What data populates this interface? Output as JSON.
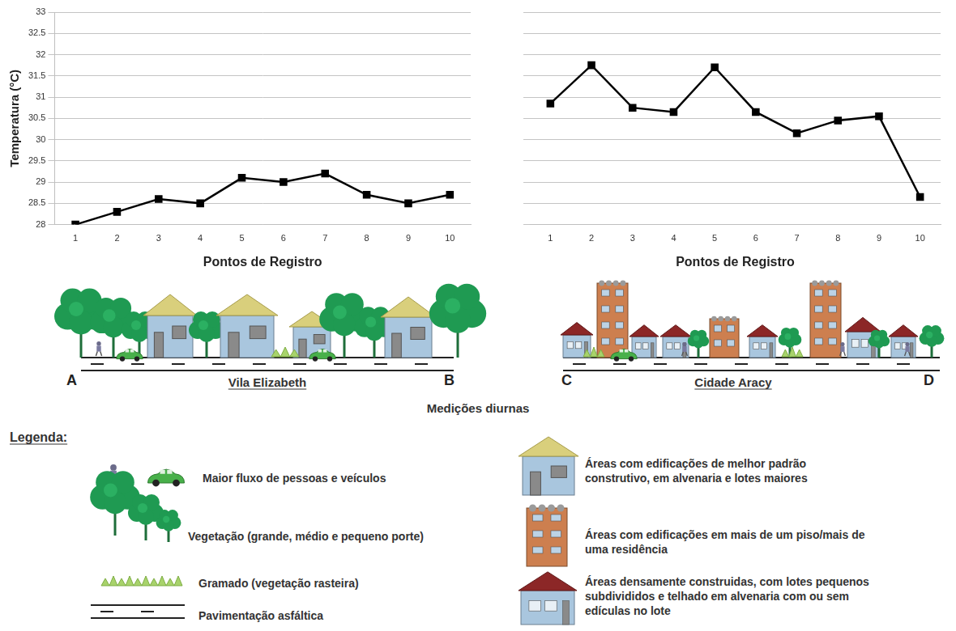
{
  "chart_data": [
    {
      "type": "line",
      "y_label": "Temperatura (°C)",
      "x_label": "Pontos de Registro",
      "categories": [
        "1",
        "2",
        "3",
        "4",
        "5",
        "6",
        "7",
        "8",
        "9",
        "10"
      ],
      "values": [
        28.0,
        28.3,
        28.6,
        28.5,
        29.1,
        29.0,
        29.2,
        28.7,
        28.5,
        28.7
      ],
      "color": "#000000",
      "marker": "square",
      "ylim": [
        28,
        33
      ],
      "yticks": [
        28,
        28.5,
        29,
        29.5,
        30,
        30.5,
        31,
        31.5,
        32,
        32.5,
        33
      ],
      "grid": true
    },
    {
      "type": "line",
      "x_label": "Pontos de Registro",
      "categories": [
        "1",
        "2",
        "3",
        "4",
        "5",
        "6",
        "7",
        "8",
        "9",
        "10"
      ],
      "values": [
        30.85,
        31.75,
        30.75,
        30.65,
        31.7,
        30.65,
        30.15,
        30.45,
        30.55,
        28.65
      ],
      "color": "#000000",
      "marker": "square",
      "ylim": [
        28,
        33
      ],
      "yticks": [
        28,
        28.5,
        29,
        29.5,
        30,
        30.5,
        31,
        31.5,
        32,
        32.5,
        33
      ],
      "grid": true,
      "tick_labels": "x"
    }
  ],
  "scenes": [
    {
      "start": "A",
      "end": "B",
      "name": "Vila Elizabeth"
    },
    {
      "start": "C",
      "end": "D",
      "name": "Cidade Aracy"
    }
  ],
  "caption": "Medições diurnas",
  "key": {
    "title": "Legenda:",
    "items": [
      "Maior fluxo de pessoas e veículos",
      "Vegetação (grande, médio e pequeno porte)",
      "Gramado (vegetação rasteira)",
      "Pavimentação asfáltica",
      "Áreas com edificações de melhor padrão construtivo, em alvenaria e lotes maiores",
      "Áreas com edificações em mais de um piso/mais de uma residência",
      "Áreas densamente construidas, com lotes pequenos subdivididos e telhado em alvenaria com ou sem edículas no lote"
    ]
  }
}
